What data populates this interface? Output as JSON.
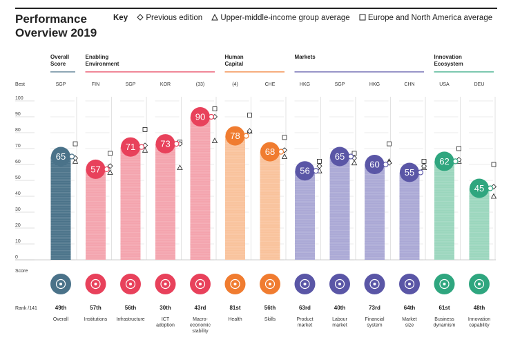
{
  "title_line1": "Performance",
  "title_line2": "Overview 2019",
  "key": {
    "label": "Key",
    "previous": "Previous edition",
    "upper_middle": "Upper-middle-income group average",
    "europe": "Europe and North America average"
  },
  "colors": {
    "overall": "#4a7289",
    "enabling": "#e8415b",
    "enabling_light": "#f4a3ad",
    "human": "#f07c30",
    "human_light": "#f9c29b",
    "markets": "#5a56a6",
    "markets_light": "#aaa8d5",
    "innovation": "#2fa67f",
    "innovation_light": "#9ad6bd"
  },
  "row_labels": {
    "best": "Best",
    "score": "Score",
    "rank": "Rank /141"
  },
  "chart_data": {
    "type": "bar",
    "title": "Performance Overview 2019",
    "ylabel": "Score",
    "ylim": [
      0,
      100
    ],
    "yticks": [
      0,
      10,
      20,
      30,
      40,
      50,
      60,
      70,
      80,
      90,
      100
    ],
    "groups": [
      {
        "name": "Overall Score",
        "line1": "Overall",
        "line2": "Score",
        "color_key": "overall"
      },
      {
        "name": "Enabling Environment",
        "line1": "Enabling",
        "line2": "Environment",
        "color_key": "enabling"
      },
      {
        "name": "Human Capital",
        "line1": "Human",
        "line2": "Capital",
        "color_key": "human"
      },
      {
        "name": "Markets",
        "line1": "Markets",
        "line2": "",
        "color_key": "markets"
      },
      {
        "name": "Innovation Ecosystem",
        "line1": "Innovation",
        "line2": "Ecosystem",
        "color_key": "innovation"
      }
    ],
    "pillars": [
      {
        "label": [
          "Overall"
        ],
        "group": 0,
        "best": "SGP",
        "score": 65,
        "rank": "49th",
        "previous": 64,
        "upper_middle": 62,
        "europe": 73,
        "icon": "medal-icon"
      },
      {
        "label": [
          "Institutions"
        ],
        "group": 1,
        "best": "FIN",
        "score": 57,
        "rank": "57th",
        "previous": 59,
        "upper_middle": 55,
        "europe": 67,
        "icon": "institution-icon"
      },
      {
        "label": [
          "Infrastructure"
        ],
        "group": 1,
        "best": "SGP",
        "score": 71,
        "rank": "56th",
        "previous": 72,
        "upper_middle": 69,
        "europe": 82,
        "icon": "train-icon"
      },
      {
        "label": [
          "ICT",
          "adoption"
        ],
        "group": 1,
        "best": "KOR",
        "score": 73,
        "rank": "30th",
        "previous": 73,
        "upper_middle": 58,
        "europe": 74,
        "icon": "chip-icon"
      },
      {
        "label": [
          "Macro-",
          "economic",
          "stability"
        ],
        "group": 1,
        "best": "(33)",
        "score": 90,
        "rank": "43rd",
        "previous": 90,
        "upper_middle": 75,
        "europe": 95,
        "icon": "percent-icon"
      },
      {
        "label": [
          "Health"
        ],
        "group": 2,
        "best": "(4)",
        "score": 78,
        "rank": "81st",
        "previous": 81,
        "upper_middle": 81,
        "europe": 91,
        "icon": "heart-pulse-icon"
      },
      {
        "label": [
          "Skills"
        ],
        "group": 2,
        "best": "CHE",
        "score": 68,
        "rank": "56th",
        "previous": 69,
        "upper_middle": 65,
        "europe": 77,
        "icon": "graduate-icon"
      },
      {
        "label": [
          "Product",
          "market"
        ],
        "group": 3,
        "best": "HKG",
        "score": 56,
        "rank": "63rd",
        "previous": 59,
        "upper_middle": 56,
        "europe": 62,
        "icon": "tag-icon"
      },
      {
        "label": [
          "Labour",
          "market"
        ],
        "group": 3,
        "best": "SGP",
        "score": 65,
        "rank": "40th",
        "previous": 64,
        "upper_middle": 61,
        "europe": 67,
        "icon": "people-icon"
      },
      {
        "label": [
          "Financial",
          "system"
        ],
        "group": 3,
        "best": "HKG",
        "score": 60,
        "rank": "73rd",
        "previous": 61,
        "upper_middle": 62,
        "europe": 73,
        "icon": "card-icon"
      },
      {
        "label": [
          "Market",
          "size"
        ],
        "group": 3,
        "best": "CHN",
        "score": 55,
        "rank": "64th",
        "previous": 59,
        "upper_middle": 58,
        "europe": 62,
        "icon": "expand-icon"
      },
      {
        "label": [
          "Business",
          "dynamism"
        ],
        "group": 4,
        "best": "USA",
        "score": 62,
        "rank": "61st",
        "previous": 63,
        "upper_middle": 62,
        "europe": 70,
        "icon": "building-icon"
      },
      {
        "label": [
          "Innovation",
          "capability"
        ],
        "group": 4,
        "best": "DEU",
        "score": 45,
        "rank": "48th",
        "previous": 46,
        "upper_middle": 40,
        "europe": 60,
        "icon": "lightbulb-icon"
      }
    ]
  }
}
